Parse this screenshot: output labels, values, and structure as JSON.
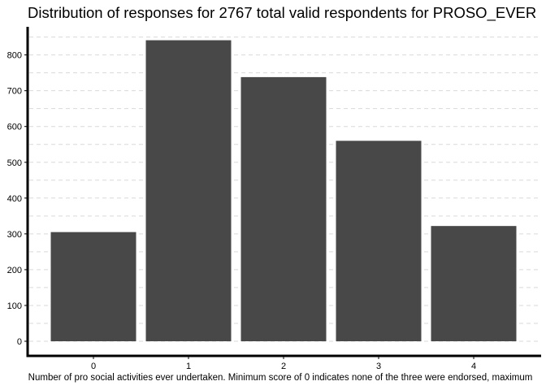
{
  "chart_data": {
    "type": "bar",
    "title": "Distribution of responses for 2767 total valid respondents for PROSO_EVER",
    "xlabel": "Number of pro social activities ever undertaken. Minimum score of 0 indicates none of the three were endorsed, maximum",
    "ylabel": "",
    "categories": [
      "0",
      "1",
      "2",
      "3",
      "4"
    ],
    "values": [
      305,
      841,
      738,
      560,
      322
    ],
    "ylim": [
      0,
      880
    ],
    "yticks": [
      0,
      100,
      200,
      300,
      400,
      500,
      600,
      700,
      800
    ],
    "grid": true,
    "bar_color": "#484848"
  }
}
